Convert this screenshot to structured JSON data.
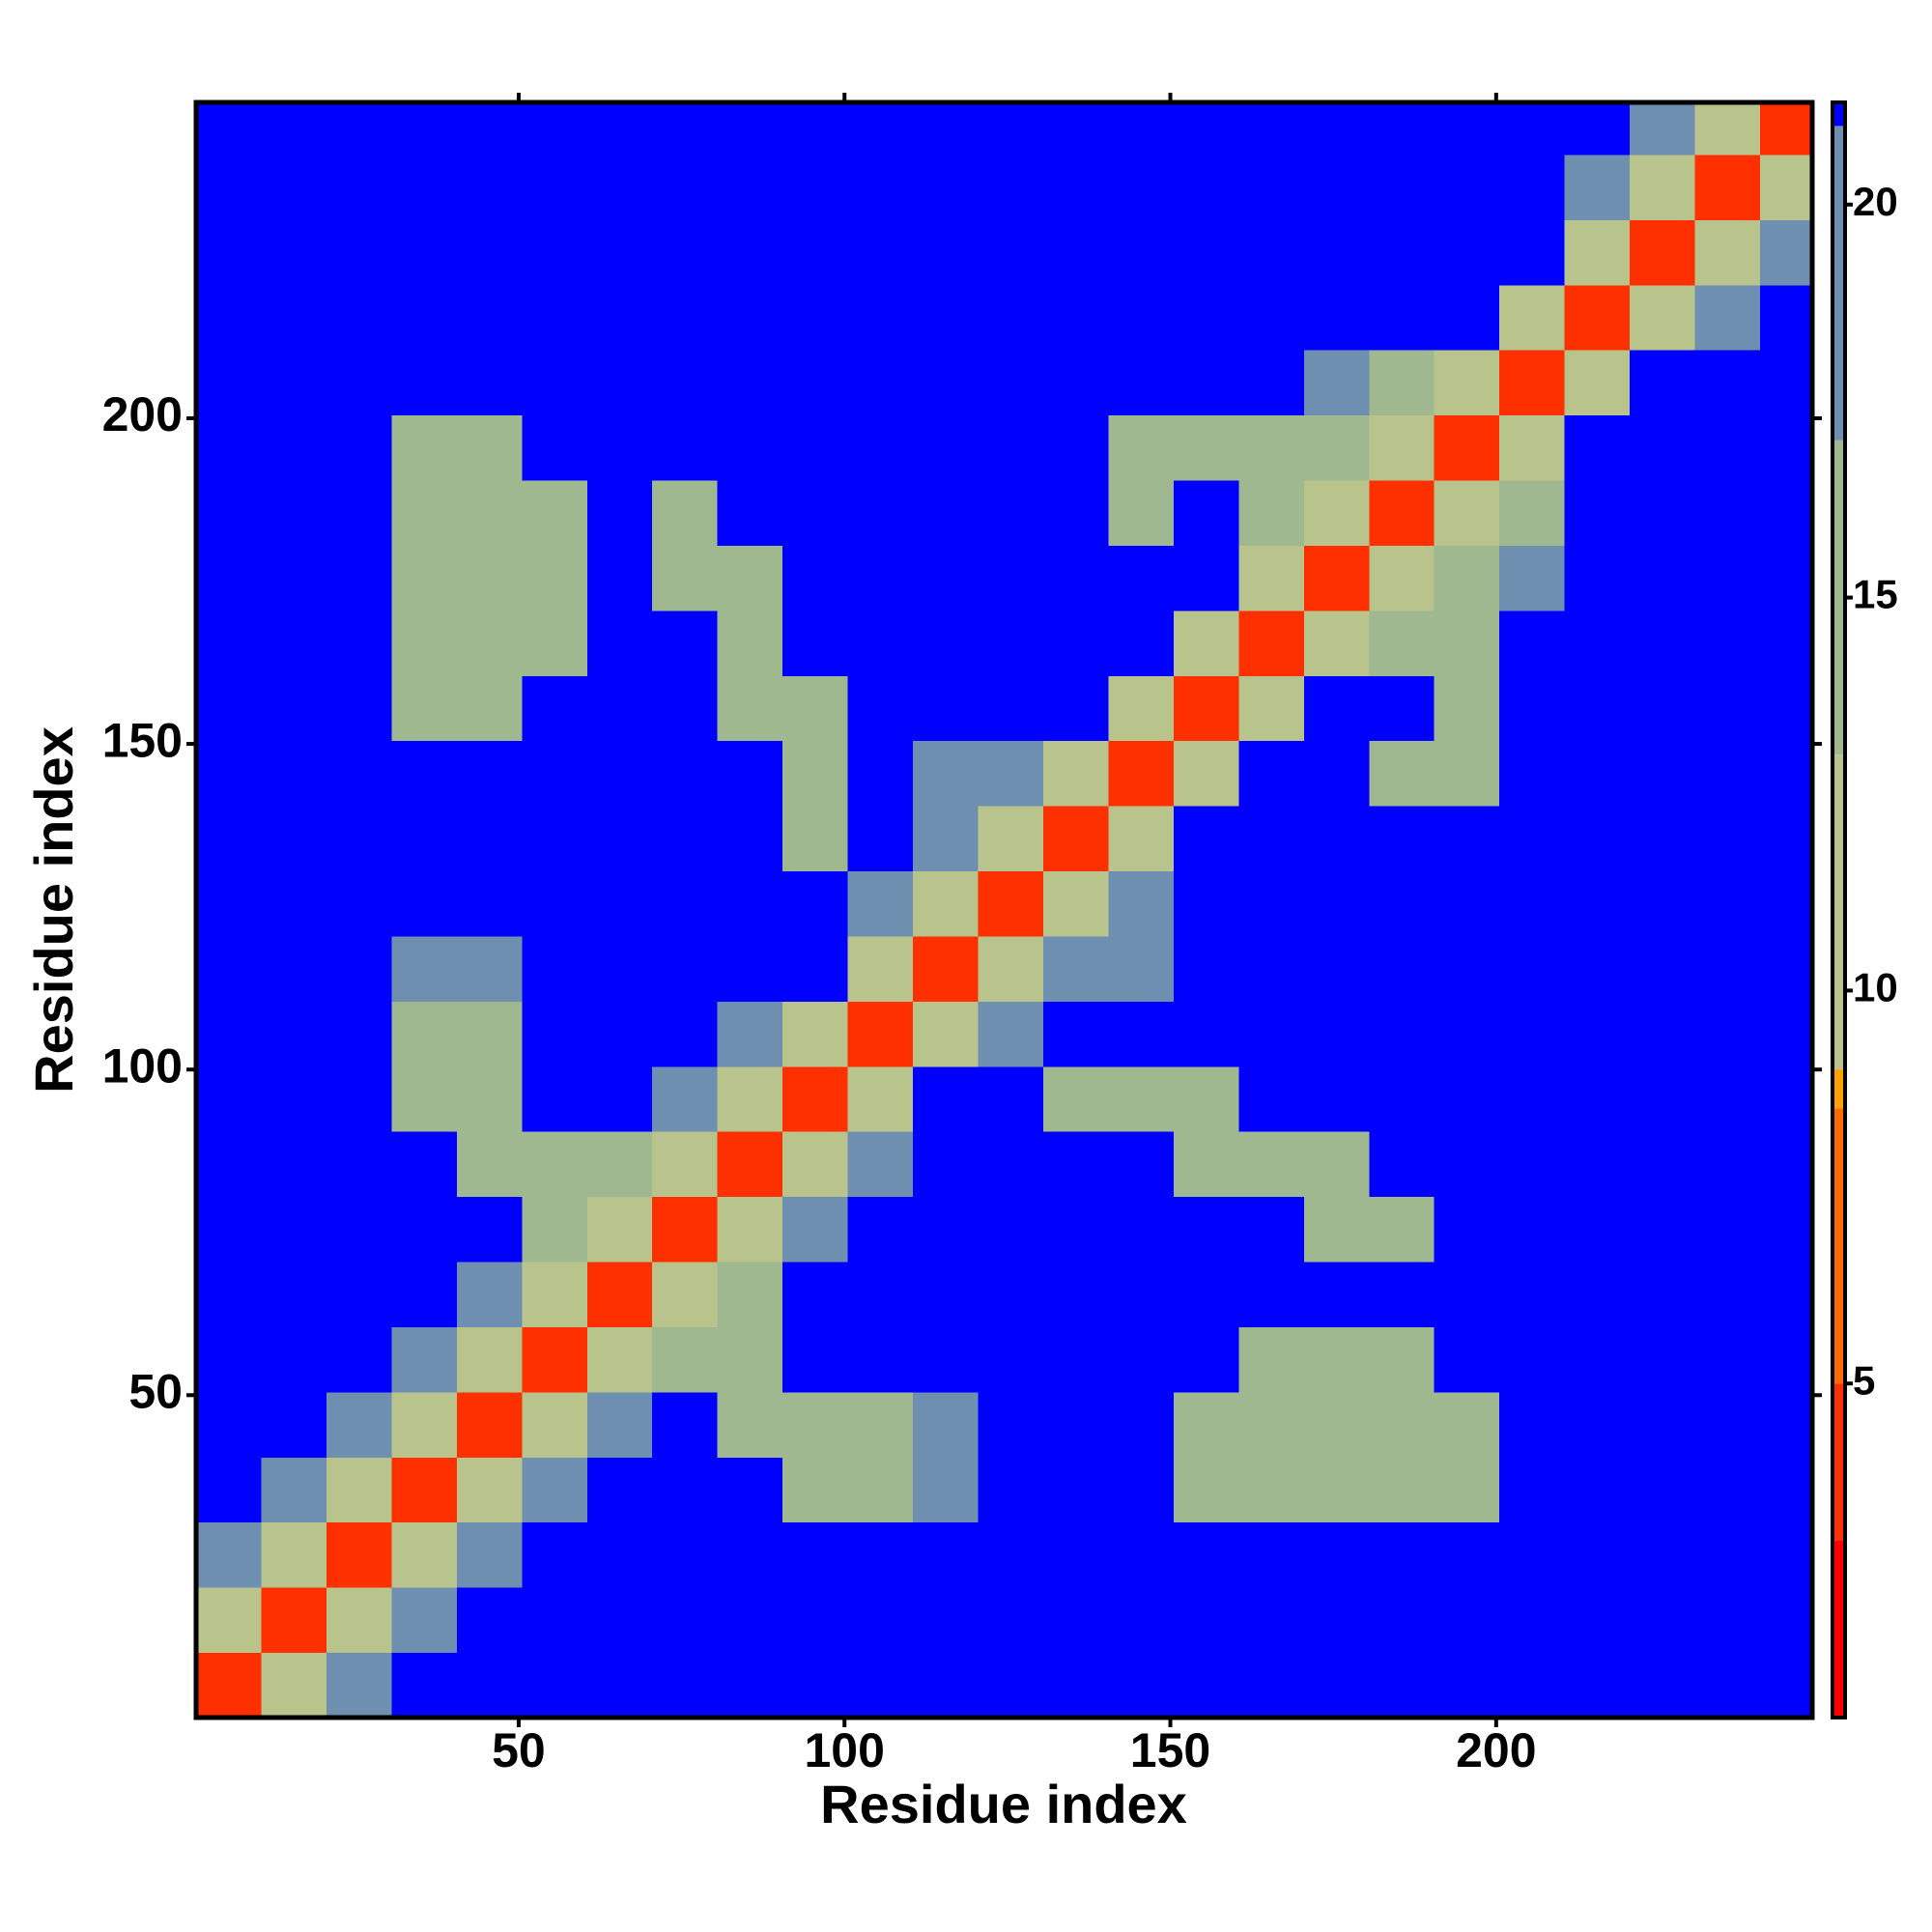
{
  "chart_data": {
    "type": "heatmap",
    "xlabel": "Residue index",
    "ylabel": "Residue index",
    "xlim": [
      0.5,
      248.5
    ],
    "ylim": [
      0.5,
      248.5
    ],
    "xticks": [
      50,
      100,
      150,
      200
    ],
    "yticks": [
      50,
      100,
      150,
      200
    ],
    "xbins": [
      0.5,
      10.5,
      20.5,
      30.5,
      40.5,
      50.5,
      60.5,
      70.5,
      80.5,
      90.5,
      100.5,
      110.5,
      120.5,
      130.5,
      140.5,
      150.5,
      160.5,
      170.5,
      180.5,
      190.5,
      200.5,
      210.5,
      220.5,
      230.5,
      240.5,
      248.5
    ],
    "ybins": [
      0.5,
      10.5,
      20.5,
      30.5,
      40.5,
      50.5,
      60.5,
      70.5,
      80.5,
      90.5,
      100.5,
      110.5,
      120.5,
      130.5,
      140.5,
      150.5,
      160.5,
      170.5,
      180.5,
      190.5,
      200.5,
      210.5,
      220.5,
      230.5,
      240.5,
      248.5
    ],
    "z": [
      [
        4,
        12,
        17,
        21,
        21,
        21,
        21,
        21,
        21,
        21,
        21,
        21,
        21,
        21,
        21,
        21,
        21,
        21,
        21,
        21,
        21,
        21,
        21,
        21,
        21
      ],
      [
        12,
        4,
        12,
        17,
        21,
        21,
        21,
        21,
        21,
        21,
        21,
        21,
        21,
        21,
        21,
        21,
        21,
        21,
        21,
        21,
        21,
        21,
        21,
        21,
        21
      ],
      [
        17,
        12,
        4,
        12,
        17,
        21,
        21,
        21,
        21,
        21,
        21,
        21,
        21,
        21,
        21,
        21,
        21,
        21,
        21,
        21,
        21,
        21,
        21,
        21,
        21
      ],
      [
        21,
        17,
        12,
        4,
        12,
        17,
        21,
        21,
        21,
        15,
        15,
        17,
        21,
        21,
        21,
        15,
        15,
        15,
        15,
        15,
        21,
        21,
        21,
        21,
        21
      ],
      [
        21,
        21,
        17,
        12,
        4,
        12,
        17,
        21,
        15,
        15,
        15,
        17,
        21,
        21,
        21,
        15,
        15,
        15,
        15,
        15,
        21,
        21,
        21,
        21,
        21
      ],
      [
        21,
        21,
        21,
        17,
        12,
        4,
        12,
        15,
        15,
        21,
        21,
        21,
        21,
        21,
        21,
        21,
        15,
        15,
        15,
        21,
        21,
        21,
        21,
        21,
        21
      ],
      [
        21,
        21,
        21,
        21,
        17,
        12,
        4,
        12,
        15,
        21,
        21,
        21,
        21,
        21,
        21,
        21,
        21,
        21,
        21,
        21,
        21,
        21,
        21,
        21,
        21
      ],
      [
        21,
        21,
        21,
        21,
        21,
        15,
        12,
        4,
        12,
        17,
        21,
        21,
        21,
        21,
        21,
        21,
        21,
        15,
        15,
        21,
        21,
        21,
        21,
        21,
        21
      ],
      [
        21,
        21,
        21,
        21,
        15,
        15,
        15,
        12,
        4,
        12,
        17,
        21,
        21,
        21,
        21,
        15,
        15,
        15,
        21,
        21,
        21,
        21,
        21,
        21,
        21
      ],
      [
        21,
        21,
        21,
        15,
        15,
        21,
        21,
        17,
        12,
        4,
        12,
        21,
        21,
        15,
        15,
        15,
        21,
        21,
        21,
        21,
        21,
        21,
        21,
        21,
        21
      ],
      [
        21,
        21,
        21,
        15,
        15,
        21,
        21,
        21,
        17,
        12,
        4,
        12,
        17,
        21,
        21,
        21,
        21,
        21,
        21,
        21,
        21,
        21,
        21,
        21,
        21
      ],
      [
        21,
        21,
        21,
        17,
        17,
        21,
        21,
        21,
        21,
        21,
        12,
        4,
        12,
        17,
        17,
        21,
        21,
        21,
        21,
        21,
        21,
        21,
        21,
        21,
        21
      ],
      [
        21,
        21,
        21,
        21,
        21,
        21,
        21,
        21,
        21,
        21,
        17,
        12,
        4,
        12,
        17,
        21,
        21,
        21,
        21,
        21,
        21,
        21,
        21,
        21,
        21
      ],
      [
        21,
        21,
        21,
        21,
        21,
        21,
        21,
        21,
        21,
        15,
        21,
        17,
        12,
        4,
        12,
        21,
        21,
        21,
        21,
        21,
        21,
        21,
        21,
        21,
        21
      ],
      [
        21,
        21,
        21,
        21,
        21,
        21,
        21,
        21,
        21,
        15,
        21,
        17,
        17,
        12,
        4,
        12,
        21,
        21,
        15,
        15,
        21,
        21,
        21,
        21,
        21
      ],
      [
        21,
        21,
        21,
        15,
        15,
        21,
        21,
        21,
        15,
        15,
        21,
        21,
        21,
        21,
        12,
        4,
        12,
        21,
        21,
        15,
        21,
        21,
        21,
        21,
        21
      ],
      [
        21,
        21,
        21,
        15,
        15,
        15,
        21,
        21,
        15,
        21,
        21,
        21,
        21,
        21,
        21,
        12,
        4,
        12,
        15,
        15,
        21,
        21,
        21,
        21,
        21
      ],
      [
        21,
        21,
        21,
        15,
        15,
        15,
        21,
        15,
        15,
        21,
        21,
        21,
        21,
        21,
        21,
        21,
        12,
        4,
        12,
        15,
        17,
        21,
        21,
        21,
        21
      ],
      [
        21,
        21,
        21,
        15,
        15,
        15,
        21,
        15,
        21,
        21,
        21,
        21,
        21,
        21,
        15,
        21,
        15,
        12,
        4,
        12,
        15,
        21,
        21,
        21,
        21
      ],
      [
        21,
        21,
        21,
        15,
        15,
        21,
        21,
        21,
        21,
        21,
        21,
        21,
        21,
        21,
        15,
        15,
        15,
        15,
        12,
        4,
        12,
        21,
        21,
        21,
        21
      ],
      [
        21,
        21,
        21,
        21,
        21,
        21,
        21,
        21,
        21,
        21,
        21,
        21,
        21,
        21,
        21,
        21,
        21,
        17,
        15,
        12,
        4,
        12,
        21,
        21,
        21
      ],
      [
        21,
        21,
        21,
        21,
        21,
        21,
        21,
        21,
        21,
        21,
        21,
        21,
        21,
        21,
        21,
        21,
        21,
        21,
        21,
        21,
        12,
        4,
        12,
        17,
        21
      ],
      [
        21,
        21,
        21,
        21,
        21,
        21,
        21,
        21,
        21,
        21,
        21,
        21,
        21,
        21,
        21,
        21,
        21,
        21,
        21,
        21,
        21,
        12,
        4,
        12,
        17
      ],
      [
        21,
        21,
        21,
        21,
        21,
        21,
        21,
        21,
        21,
        21,
        21,
        21,
        21,
        21,
        21,
        21,
        21,
        21,
        21,
        21,
        21,
        17,
        12,
        4,
        12
      ],
      [
        21,
        21,
        21,
        21,
        21,
        21,
        21,
        21,
        21,
        21,
        21,
        21,
        21,
        21,
        21,
        21,
        21,
        21,
        21,
        21,
        21,
        21,
        17,
        12,
        4
      ]
    ],
    "zlim": [
      0.75,
      21.3
    ],
    "zticks": [
      5,
      10,
      15,
      20
    ],
    "colorscale": [
      [
        0.75,
        "#ff0000"
      ],
      [
        3,
        "#ff3000"
      ],
      [
        5,
        "#ff6a00"
      ],
      [
        8.5,
        "#ffa000"
      ],
      [
        9,
        "#b8c48c"
      ],
      [
        13,
        "#9fb890"
      ],
      [
        17,
        "#6f8fb0"
      ],
      [
        21,
        "#0000ff"
      ]
    ]
  }
}
